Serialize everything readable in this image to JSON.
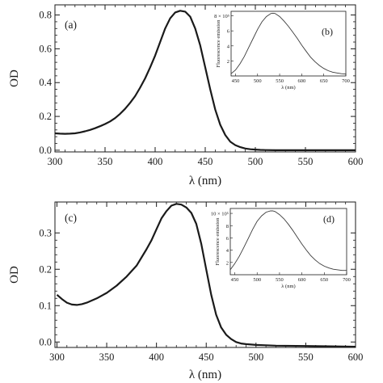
{
  "chart_data": [
    {
      "type": "line",
      "panel_label": "(a)",
      "ylabel": "OD",
      "xlabel": "λ (nm)",
      "xlim": [
        300,
        600
      ],
      "ylim": [
        -0.01,
        0.86
      ],
      "xticks": [
        300,
        350,
        400,
        450,
        500,
        550,
        600
      ],
      "yticks": [
        0.0,
        0.2,
        0.4,
        0.6,
        0.8
      ],
      "ytick_labels": [
        "0.0",
        "0.2",
        "0.4",
        "0.6",
        "0.8"
      ],
      "color": "#1a1a1a",
      "series": [
        {
          "x": [
            300,
            305,
            310,
            315,
            320,
            325,
            330,
            335,
            340,
            345,
            350,
            355,
            360,
            365,
            370,
            375,
            380,
            385,
            390,
            395,
            400,
            405,
            410,
            415,
            420,
            425,
            430,
            435,
            440,
            445,
            450,
            455,
            460,
            465,
            470,
            475,
            480,
            485,
            490,
            495,
            500,
            505,
            510,
            520,
            530,
            550,
            575,
            600
          ],
          "y": [
            0.1,
            0.098,
            0.097,
            0.098,
            0.1,
            0.105,
            0.112,
            0.12,
            0.13,
            0.142,
            0.155,
            0.17,
            0.19,
            0.215,
            0.245,
            0.28,
            0.32,
            0.37,
            0.425,
            0.49,
            0.56,
            0.64,
            0.72,
            0.78,
            0.815,
            0.825,
            0.82,
            0.79,
            0.72,
            0.62,
            0.49,
            0.36,
            0.24,
            0.15,
            0.09,
            0.05,
            0.03,
            0.018,
            0.01,
            0.006,
            0.004,
            0.002,
            0.001,
            0.0,
            0.0,
            0.0,
            0.0,
            0.0
          ]
        }
      ],
      "inset": {
        "panel_label": "(b)",
        "ylabel": "Fluorescence emission",
        "xlabel": "λ (nm)",
        "xlim": [
          440,
          700
        ],
        "ylim": [
          0,
          8.6
        ],
        "xticks": [
          450,
          500,
          550,
          600,
          650,
          700
        ],
        "yticks": [
          2,
          4,
          6,
          8
        ],
        "ytick_labels": [
          "2",
          "4",
          "6",
          "8 × 10⁵"
        ],
        "series": [
          {
            "x": [
              440,
              450,
              460,
              470,
              480,
              490,
              500,
              510,
              520,
              530,
              535,
              540,
              550,
              560,
              570,
              580,
              590,
              600,
              610,
              620,
              630,
              640,
              650,
              660,
              670,
              680,
              690,
              700
            ],
            "y": [
              0.3,
              0.8,
              1.6,
              2.6,
              3.8,
              5.0,
              6.2,
              7.2,
              7.9,
              8.3,
              8.35,
              8.3,
              7.9,
              7.3,
              6.6,
              5.8,
              5.0,
              4.1,
              3.3,
              2.5,
              1.9,
              1.4,
              1.0,
              0.7,
              0.5,
              0.4,
              0.3,
              0.25
            ]
          }
        ]
      }
    },
    {
      "type": "line",
      "panel_label": "(c)",
      "ylabel": "OD",
      "xlabel": "λ (nm)",
      "xlim": [
        298,
        600
      ],
      "ylim": [
        -0.015,
        0.385
      ],
      "xticks": [
        300,
        350,
        400,
        450,
        500,
        550,
        600
      ],
      "yticks": [
        0.0,
        0.1,
        0.2,
        0.3
      ],
      "ytick_labels": [
        "0.0",
        "0.1",
        "0.2",
        "0.3"
      ],
      "color": "#1a1a1a",
      "series": [
        {
          "x": [
            300,
            305,
            310,
            315,
            320,
            325,
            330,
            340,
            350,
            360,
            370,
            380,
            390,
            395,
            400,
            405,
            410,
            415,
            420,
            425,
            430,
            435,
            440,
            445,
            450,
            455,
            460,
            465,
            470,
            475,
            480,
            485,
            490,
            500,
            510,
            520,
            550,
            575,
            600
          ],
          "y": [
            0.13,
            0.118,
            0.108,
            0.103,
            0.102,
            0.104,
            0.108,
            0.12,
            0.135,
            0.155,
            0.18,
            0.21,
            0.255,
            0.28,
            0.31,
            0.34,
            0.36,
            0.375,
            0.38,
            0.378,
            0.37,
            0.355,
            0.325,
            0.27,
            0.2,
            0.13,
            0.075,
            0.04,
            0.02,
            0.008,
            0.0,
            -0.004,
            -0.006,
            -0.008,
            -0.009,
            -0.01,
            -0.011,
            -0.012,
            -0.013
          ]
        }
      ],
      "inset": {
        "panel_label": "(d)",
        "ylabel": "Fluorescence emission",
        "xlabel": "λ (nm)",
        "xlim": [
          440,
          700
        ],
        "ylim": [
          0,
          10.8
        ],
        "xticks": [
          450,
          500,
          550,
          600,
          650,
          700
        ],
        "yticks": [
          2,
          4,
          6,
          8,
          10
        ],
        "ytick_labels": [
          "2",
          "4",
          "6",
          "8",
          "10 × 10⁵"
        ],
        "series": [
          {
            "x": [
              440,
              450,
              460,
              470,
              480,
              490,
              500,
              510,
              520,
              530,
              535,
              540,
              550,
              560,
              570,
              580,
              590,
              600,
              610,
              620,
              630,
              640,
              650,
              660,
              670,
              680,
              690,
              700
            ],
            "y": [
              0.8,
              1.8,
              3.0,
              4.4,
              5.9,
              7.4,
              8.7,
              9.6,
              10.2,
              10.4,
              10.4,
              10.3,
              9.8,
              9.1,
              8.2,
              7.2,
              6.1,
              5.0,
              4.0,
              3.1,
              2.4,
              1.8,
              1.4,
              1.1,
              0.9,
              0.8,
              0.7,
              0.7
            ]
          }
        ]
      }
    }
  ]
}
